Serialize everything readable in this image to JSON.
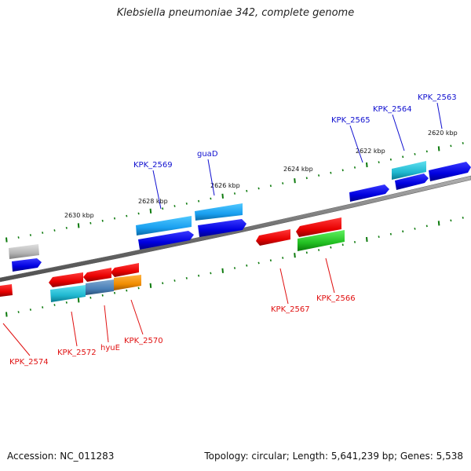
{
  "title": "Klebsiella pneumoniae 342, complete genome",
  "footer": {
    "accession": "Accession: NC_011283",
    "summary": "Topology: circular; Length: 5,641,239 bp; Genes: 5,538"
  },
  "colors": {
    "forward_label": "#1010d0",
    "reverse_label": "#e01010",
    "backbone": "#808080",
    "tick": "#0d7a0d"
  },
  "scale_labels": [
    "2620 kbp",
    "2622 kbp",
    "2624 kbp",
    "2626 kbp",
    "2628 kbp",
    "2630 kbp"
  ],
  "forward_gene_labels": [
    "KPK_2563",
    "KPK_2564",
    "KPK_2565",
    "guaD",
    "KPK_2569"
  ],
  "reverse_gene_labels": [
    "KPK_2574",
    "KPK_2572",
    "hyuE",
    "KPK_2570",
    "KPK_2567",
    "KPK_2566"
  ]
}
